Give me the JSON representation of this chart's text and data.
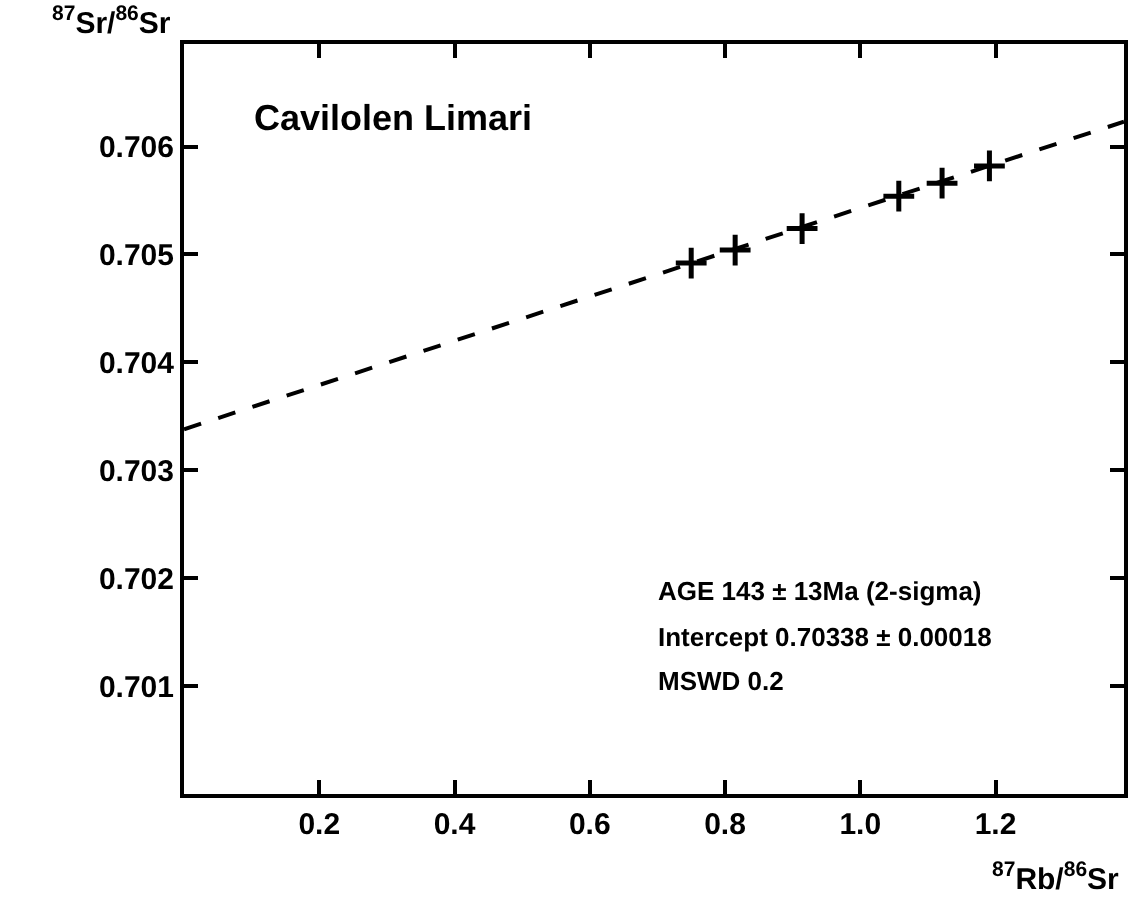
{
  "chart_data": {
    "type": "scatter",
    "title": "Cavilolen Limari",
    "xlabel": "$^{87}$Rb/$^{86}$Sr",
    "ylabel": "$^{87}$Sr/$^{86}$Sr",
    "xlim": [
      0,
      1.39
    ],
    "ylim": [
      0.7,
      0.70695
    ],
    "xticks": [
      {
        "value": 0.2,
        "label": "0.2"
      },
      {
        "value": 0.4,
        "label": "0.4"
      },
      {
        "value": 0.6,
        "label": "0.6"
      },
      {
        "value": 0.8,
        "label": "0.8"
      },
      {
        "value": 1.0,
        "label": "1.0"
      },
      {
        "value": 1.2,
        "label": "1.2"
      }
    ],
    "yticks": [
      0.701,
      0.702,
      0.703,
      0.704,
      0.705,
      0.706
    ],
    "series": [
      {
        "color": "#000000",
        "marker": "cross",
        "x": [
          0.75,
          0.815,
          0.914,
          1.057,
          1.121,
          1.191
        ],
        "values": [
          0.70492,
          0.70504,
          0.70524,
          0.70554,
          0.70566,
          0.70582
        ]
      },
      {
        "type": "line",
        "color": "#000000",
        "marker": "none",
        "line_style": "dashed",
        "x": [
          0,
          1.39
        ],
        "values": [
          0.70338,
          0.70623
        ]
      }
    ],
    "annotations": [
      "AGE 143 ± 13Ma (2-sigma)",
      "Intercept 0.70338 ± 0.00018",
      "MSWD 0.2"
    ]
  }
}
